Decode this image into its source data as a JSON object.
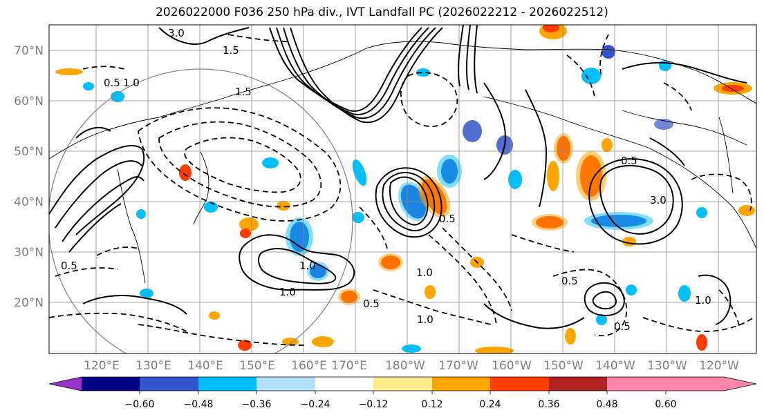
{
  "figure": {
    "title": "2026022000 F036 250 hPa div., IVT Landfall PC (2026022212 - 2026022512)"
  },
  "map": {
    "lat_ticks": [
      "70°N",
      "60°N",
      "50°N",
      "40°N",
      "30°N",
      "20°N"
    ],
    "lon_ticks": [
      "120°E",
      "130°E",
      "140°E",
      "150°E",
      "160°E",
      "170°E",
      "180°W",
      "170°W",
      "160°W",
      "150°W",
      "140°W",
      "130°W",
      "120°W"
    ],
    "contour_labels": [
      "3.0",
      "1.5",
      "0.5",
      "1.0",
      "0.5",
      "1.0",
      "1.5",
      "1.0",
      "0.5",
      "1.0",
      "0.5",
      "3.0",
      "0.5",
      "1.0",
      "0.5",
      "1.0",
      "0.5"
    ],
    "colors": {
      "gridline": "#888888",
      "circle": "#888888",
      "axis_label": "#808080",
      "contour": "#000000"
    }
  },
  "colorbar": {
    "tick_labels": [
      "−0.60",
      "−0.48",
      "−0.36",
      "−0.24",
      "−0.12",
      "0.12",
      "0.24",
      "0.36",
      "0.48",
      "0.60"
    ],
    "colors": [
      "#9933cc",
      "#000080",
      "#3355cc",
      "#00bfff",
      "#b3e0ff",
      "#ffffff",
      "#ffeb8a",
      "#ffa500",
      "#ff3c00",
      "#b22222",
      "#ff85aa"
    ]
  }
}
